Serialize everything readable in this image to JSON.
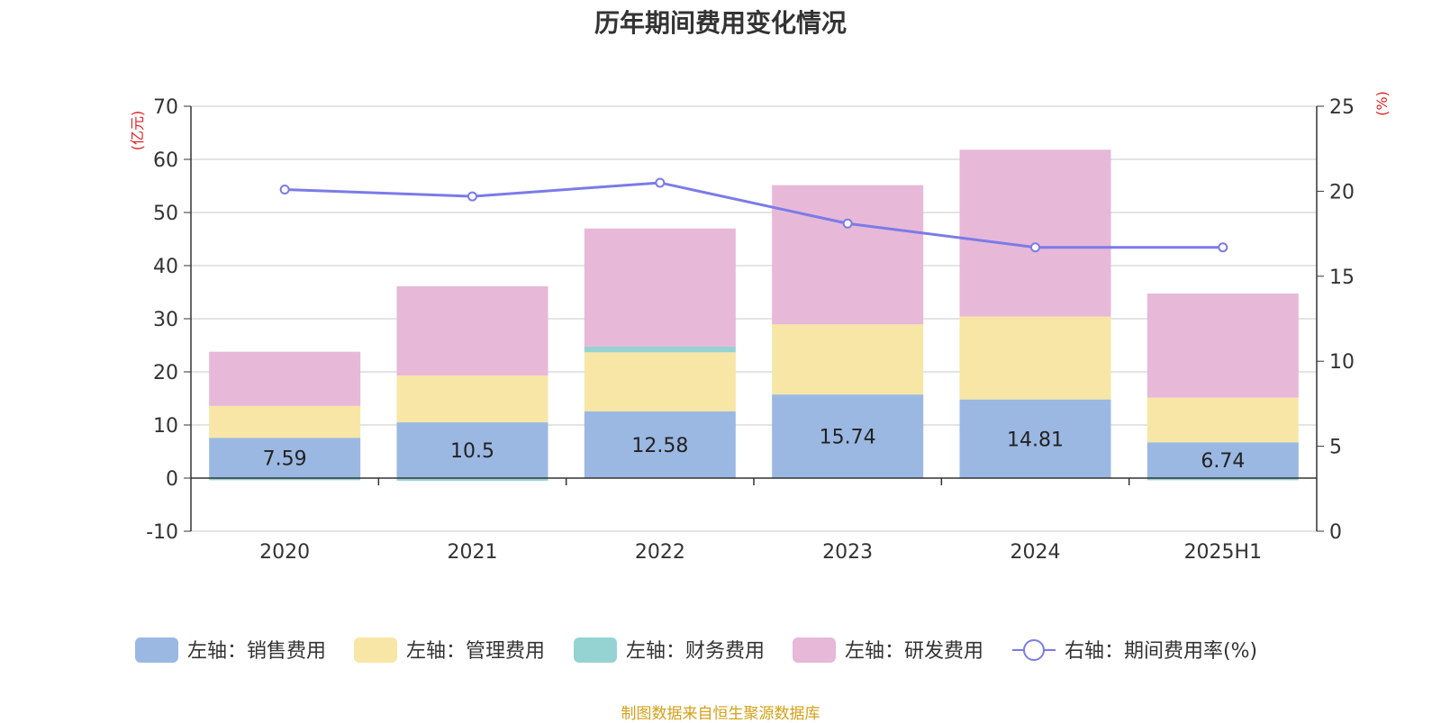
{
  "chart_data": {
    "type": "bar",
    "title": "历年期间费用变化情况",
    "left_axis_unit": "(亿元)",
    "right_axis_unit": "(%)",
    "categories": [
      "2020",
      "2021",
      "2022",
      "2023",
      "2024",
      "2025H1"
    ],
    "left_ylim": [
      -10,
      70
    ],
    "left_ticks": [
      70,
      60,
      50,
      40,
      30,
      20,
      10,
      0,
      -10
    ],
    "right_ylim": [
      0,
      25
    ],
    "right_ticks": [
      25,
      20,
      15,
      10,
      5,
      0
    ],
    "grid": true,
    "stacked": true,
    "legend_position": "bottom",
    "series": [
      {
        "name": "左轴：销售费用",
        "axis": "left",
        "type": "bar",
        "color": "#9bb8e2",
        "values": [
          7.59,
          10.5,
          12.58,
          15.74,
          14.81,
          6.74
        ],
        "labels": [
          "7.59",
          "10.5",
          "12.58",
          "15.74",
          "14.81",
          "6.74"
        ]
      },
      {
        "name": "左轴：管理费用",
        "axis": "left",
        "type": "bar",
        "color": "#f7e6a6",
        "values": [
          6.0,
          8.8,
          11.1,
          13.2,
          15.6,
          8.4
        ]
      },
      {
        "name": "左轴：财务费用",
        "axis": "left",
        "type": "bar",
        "color": "#95d3d3",
        "values": [
          -0.4,
          -0.5,
          1.1,
          -0.1,
          -0.1,
          -0.4
        ]
      },
      {
        "name": "左轴：研发费用",
        "axis": "left",
        "type": "bar",
        "color": "#e7b8d8",
        "values": [
          10.2,
          16.8,
          22.2,
          26.2,
          31.4,
          19.6
        ]
      },
      {
        "name": "右轴：期间费用率(%)",
        "axis": "right",
        "type": "line",
        "color": "#7b7be8",
        "values": [
          20.1,
          19.7,
          20.5,
          18.1,
          16.7,
          16.7
        ]
      }
    ]
  },
  "source_note": "制图数据来自恒生聚源数据库"
}
